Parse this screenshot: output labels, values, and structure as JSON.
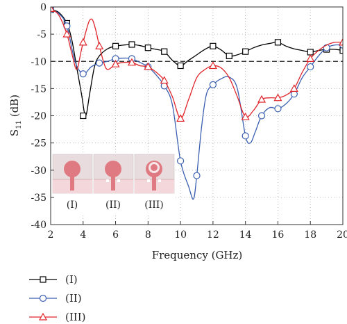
{
  "chart_data": {
    "type": "line",
    "xlabel": "Frequency (GHz)",
    "ylabel": "S",
    "ylabel_sub": "11",
    "ylabel_unit": " (dB)",
    "xlim": [
      2,
      20
    ],
    "ylim": [
      -40,
      0
    ],
    "x_ticks": [
      "2",
      "4",
      "6",
      "8",
      "10",
      "12",
      "14",
      "16",
      "18",
      "20"
    ],
    "y_ticks": [
      "0",
      "-5",
      "-10",
      "-15",
      "-20",
      "-25",
      "-30",
      "-35",
      "-40"
    ],
    "grid": true,
    "reference_line": -10,
    "legend_position": "below-left",
    "inset_labels": [
      "(I)",
      "(II)",
      "(III)"
    ],
    "series": [
      {
        "name": "(I)",
        "marker": "square",
        "color": "#000000",
        "curve": [
          [
            2,
            -0.5
          ],
          [
            2.5,
            -1
          ],
          [
            3,
            -3
          ],
          [
            3.3,
            -6
          ],
          [
            3.6,
            -11
          ],
          [
            3.9,
            -16
          ],
          [
            4.15,
            -20
          ],
          [
            4.4,
            -16
          ],
          [
            4.7,
            -11
          ],
          [
            5,
            -9
          ],
          [
            5.5,
            -7.7
          ],
          [
            6,
            -7.2
          ],
          [
            6.5,
            -7
          ],
          [
            7,
            -6.9
          ],
          [
            7.5,
            -7.1
          ],
          [
            8,
            -7.5
          ],
          [
            8.5,
            -7.8
          ],
          [
            9,
            -8.2
          ],
          [
            9.5,
            -9.8
          ],
          [
            10,
            -10.8
          ],
          [
            10.5,
            -9.8
          ],
          [
            11,
            -8.8
          ],
          [
            11.5,
            -7.8
          ],
          [
            12,
            -7.2
          ],
          [
            12.5,
            -7.9
          ],
          [
            13,
            -9
          ],
          [
            13.5,
            -8.8
          ],
          [
            14,
            -8.2
          ],
          [
            14.5,
            -7.5
          ],
          [
            15,
            -7
          ],
          [
            15.5,
            -6.7
          ],
          [
            16,
            -6.5
          ],
          [
            16.5,
            -7.2
          ],
          [
            17,
            -7.7
          ],
          [
            17.5,
            -8
          ],
          [
            18,
            -8.3
          ],
          [
            18.5,
            -8
          ],
          [
            19,
            -7.8
          ],
          [
            19.5,
            -7.8
          ],
          [
            20,
            -8
          ]
        ],
        "markers": [
          [
            2,
            -0.5
          ],
          [
            3,
            -3
          ],
          [
            4,
            -20
          ],
          [
            6,
            -7.2
          ],
          [
            7,
            -6.9
          ],
          [
            8,
            -7.5
          ],
          [
            9,
            -8.2
          ],
          [
            10,
            -10.8
          ],
          [
            12,
            -7.2
          ],
          [
            13,
            -9
          ],
          [
            14,
            -8.2
          ],
          [
            16,
            -6.5
          ],
          [
            18,
            -8.3
          ],
          [
            19,
            -7.8
          ],
          [
            20,
            -8
          ]
        ]
      },
      {
        "name": "(II)",
        "marker": "circle",
        "color": "#3a5fb0",
        "curve": [
          [
            2,
            -0.5
          ],
          [
            2.5,
            -1.2
          ],
          [
            3,
            -3.5
          ],
          [
            3.5,
            -10
          ],
          [
            4,
            -12.3
          ],
          [
            4.5,
            -11
          ],
          [
            5,
            -10.3
          ],
          [
            5.5,
            -10
          ],
          [
            6,
            -9.5
          ],
          [
            6.5,
            -9.4
          ],
          [
            7,
            -9.5
          ],
          [
            7.5,
            -10.2
          ],
          [
            8,
            -11
          ],
          [
            8.5,
            -12.5
          ],
          [
            9,
            -14.5
          ],
          [
            9.5,
            -18
          ],
          [
            10,
            -28.3
          ],
          [
            10.5,
            -33
          ],
          [
            10.8,
            -35.3
          ],
          [
            11,
            -31
          ],
          [
            11.3,
            -22
          ],
          [
            11.6,
            -16
          ],
          [
            12,
            -14.3
          ],
          [
            12.5,
            -13.2
          ],
          [
            13,
            -12.9
          ],
          [
            13.5,
            -15
          ],
          [
            14,
            -23.7
          ],
          [
            14.3,
            -25
          ],
          [
            14.6,
            -23
          ],
          [
            15,
            -20
          ],
          [
            15.5,
            -18.5
          ],
          [
            16,
            -18.7
          ],
          [
            16.5,
            -17.8
          ],
          [
            17,
            -16
          ],
          [
            17.5,
            -13
          ],
          [
            18,
            -11
          ],
          [
            18.5,
            -9
          ],
          [
            19,
            -7.5
          ],
          [
            19.5,
            -7
          ],
          [
            20,
            -7
          ]
        ],
        "markers": [
          [
            2,
            -0.5
          ],
          [
            3,
            -3.5
          ],
          [
            4,
            -12.3
          ],
          [
            5,
            -10.3
          ],
          [
            6,
            -9.5
          ],
          [
            7,
            -9.5
          ],
          [
            8,
            -11
          ],
          [
            9,
            -14.5
          ],
          [
            10,
            -28.3
          ],
          [
            11,
            -31
          ],
          [
            12,
            -14.3
          ],
          [
            14,
            -23.7
          ],
          [
            15,
            -20
          ],
          [
            16,
            -18.7
          ],
          [
            17,
            -16
          ],
          [
            18,
            -11
          ],
          [
            19,
            -7.5
          ],
          [
            20,
            -7
          ]
        ]
      },
      {
        "name": "(III)",
        "marker": "triangle",
        "color": "#e0252b",
        "curve": [
          [
            2,
            -0.3
          ],
          [
            2.5,
            -1.5
          ],
          [
            3,
            -5
          ],
          [
            3.3,
            -8.5
          ],
          [
            3.6,
            -11.5
          ],
          [
            3.85,
            -8.5
          ],
          [
            4,
            -6.5
          ],
          [
            4.3,
            -3.2
          ],
          [
            4.45,
            -2.3
          ],
          [
            4.6,
            -2.5
          ],
          [
            4.8,
            -4.5
          ],
          [
            5,
            -7.2
          ],
          [
            5.3,
            -10.5
          ],
          [
            5.5,
            -11.5
          ],
          [
            5.8,
            -11
          ],
          [
            6,
            -10.5
          ],
          [
            6.5,
            -10.2
          ],
          [
            7,
            -10.2
          ],
          [
            7.5,
            -10.8
          ],
          [
            8,
            -11
          ],
          [
            8.5,
            -12
          ],
          [
            9,
            -13.5
          ],
          [
            9.5,
            -16.5
          ],
          [
            10,
            -20.5
          ],
          [
            10.5,
            -17
          ],
          [
            11,
            -13
          ],
          [
            11.5,
            -11.5
          ],
          [
            12,
            -10.8
          ],
          [
            12.5,
            -11.2
          ],
          [
            13,
            -13
          ],
          [
            13.5,
            -16.5
          ],
          [
            14,
            -20.2
          ],
          [
            14.5,
            -19
          ],
          [
            15,
            -17
          ],
          [
            15.5,
            -16.7
          ],
          [
            16,
            -16.7
          ],
          [
            16.5,
            -16.2
          ],
          [
            17,
            -15
          ],
          [
            17.5,
            -12
          ],
          [
            18,
            -9.5
          ],
          [
            18.5,
            -8
          ],
          [
            19,
            -7
          ],
          [
            19.5,
            -6.5
          ],
          [
            20,
            -6.5
          ]
        ],
        "markers": [
          [
            2,
            -0.3
          ],
          [
            3,
            -5
          ],
          [
            4,
            -6.5
          ],
          [
            5,
            -7.2
          ],
          [
            6,
            -10.5
          ],
          [
            7,
            -10.2
          ],
          [
            8,
            -11
          ],
          [
            9,
            -13.5
          ],
          [
            10,
            -20.5
          ],
          [
            12,
            -10.8
          ],
          [
            14,
            -20.2
          ],
          [
            15,
            -17
          ],
          [
            16,
            -16.7
          ],
          [
            17,
            -15
          ],
          [
            18,
            -9.5
          ],
          [
            20,
            -6.5
          ]
        ]
      }
    ]
  }
}
